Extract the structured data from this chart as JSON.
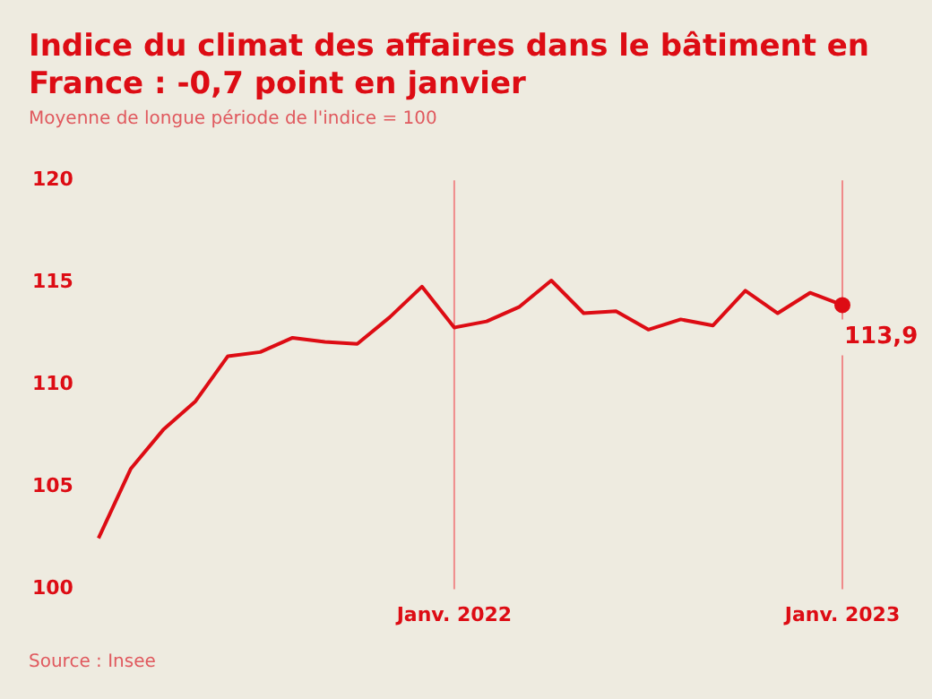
{
  "chart_data": {
    "type": "line",
    "title": "Indice du climat des affaires dans le bâtiment en France : -0,7 point en janvier",
    "subtitle": "Moyenne de longue période de l'indice = 100",
    "categories": [
      null,
      null,
      null,
      null,
      null,
      null,
      null,
      null,
      null,
      null,
      null,
      "Janv. 2022",
      null,
      null,
      null,
      null,
      null,
      null,
      null,
      null,
      null,
      null,
      null,
      "Janv. 2023"
    ],
    "series": [
      {
        "color": "#dd0c14",
        "values": [
          102.5,
          105.9,
          107.8,
          109.2,
          111.4,
          111.6,
          112.3,
          112.1,
          112.0,
          113.3,
          114.8,
          112.8,
          113.1,
          113.8,
          115.1,
          113.5,
          113.6,
          112.7,
          113.2,
          112.9,
          114.6,
          113.5,
          114.5,
          113.9
        ],
        "value_labels": [
          null,
          null,
          null,
          null,
          null,
          null,
          null,
          null,
          null,
          null,
          null,
          null,
          null,
          null,
          null,
          null,
          null,
          null,
          null,
          null,
          null,
          null,
          null,
          "113,9"
        ]
      }
    ],
    "ylim": [
      100,
      120
    ],
    "yticks": [
      100,
      105,
      110,
      115,
      120
    ],
    "grid": false,
    "legend": false,
    "ref_lines": [
      {
        "axis": "x",
        "value": "Janv. 2022",
        "color": "#ef8a8a"
      },
      {
        "axis": "x",
        "value": "Janv. 2023",
        "color": "#ef8a8a"
      }
    ],
    "annotations": [
      "Source : Insee"
    ]
  }
}
